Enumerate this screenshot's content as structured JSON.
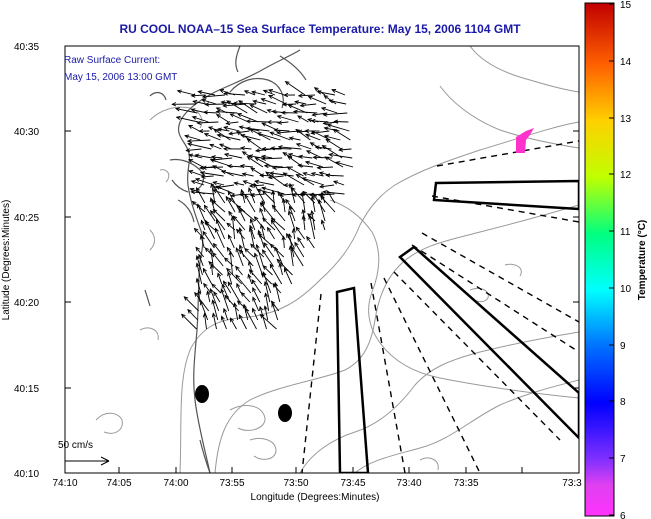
{
  "title": "RU COOL  NOAA–15  Sea Surface Temperature:  May 15, 2006 1104 GMT",
  "current_label": "Raw Surface Current:",
  "current_time": "May 15, 2006 13:00 GMT",
  "scale_label": "50 cm/s",
  "x_axis": {
    "label": "Longitude (Degrees:Minutes)",
    "ticks": [
      "74:10",
      "74:05",
      "74:00",
      "73:55",
      "73:50",
      "73:45",
      "73:40",
      "73:35",
      "73:3"
    ]
  },
  "y_axis": {
    "label": "Latitude (Degrees:Minutes)",
    "ticks": [
      "40:35",
      "40:30",
      "40:25",
      "40:20",
      "40:15",
      "40:10"
    ]
  },
  "colorbar": {
    "title": "Temperature (°C)",
    "ticks": [
      "15",
      "14",
      "13",
      "12",
      "11",
      "10",
      "9",
      "8",
      "7",
      "6"
    ],
    "min": 6,
    "max": 15
  },
  "colors": {
    "title_text": "#1a1aa8",
    "contour": "#999999",
    "coast": "#555555",
    "warm_patch": "#ff33cc"
  }
}
